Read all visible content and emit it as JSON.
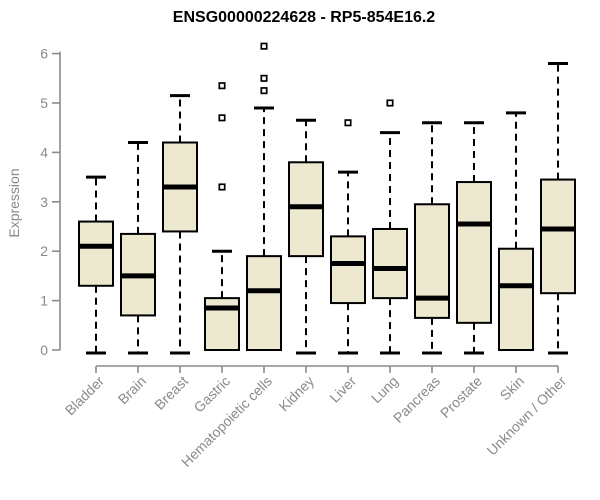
{
  "chart_data": {
    "type": "boxplot",
    "title": "ENSG00000224628 - RP5-854E16.2",
    "ylabel": "Expression",
    "xlabel": "",
    "ylim": [
      0,
      6
    ],
    "yticks": [
      0,
      1,
      2,
      3,
      4,
      5,
      6
    ],
    "grid": false,
    "legend": "none",
    "categories": [
      "Bladder",
      "Brain",
      "Breast",
      "Gastric",
      "Hematopoietic cells",
      "Kidney",
      "Liver",
      "Lung",
      "Pancreas",
      "Prostate",
      "Skin",
      "Unknown / Other"
    ],
    "series": [
      {
        "name": "Bladder",
        "min": 0,
        "q1": 1.3,
        "median": 2.1,
        "q3": 2.6,
        "max": 3.5,
        "outliers": []
      },
      {
        "name": "Brain",
        "min": 0,
        "q1": 0.7,
        "median": 1.5,
        "q3": 2.35,
        "max": 4.2,
        "outliers": []
      },
      {
        "name": "Breast",
        "min": 0,
        "q1": 2.4,
        "median": 3.3,
        "q3": 4.2,
        "max": 5.15,
        "outliers": []
      },
      {
        "name": "Gastric",
        "min": 0,
        "q1": 0,
        "median": 0.85,
        "q3": 1.05,
        "max": 2.0,
        "outliers": [
          3.3,
          4.7,
          5.35
        ]
      },
      {
        "name": "Hematopoietic cells",
        "min": 0,
        "q1": 0,
        "median": 1.2,
        "q3": 1.9,
        "max": 4.9,
        "outliers": [
          5.25,
          5.5,
          6.15
        ]
      },
      {
        "name": "Kidney",
        "min": 0,
        "q1": 1.9,
        "median": 2.9,
        "q3": 3.8,
        "max": 4.65,
        "outliers": []
      },
      {
        "name": "Liver",
        "min": 0,
        "q1": 0.95,
        "median": 1.75,
        "q3": 2.3,
        "max": 3.6,
        "outliers": [
          4.6
        ]
      },
      {
        "name": "Lung",
        "min": 0,
        "q1": 1.05,
        "median": 1.65,
        "q3": 2.45,
        "max": 4.4,
        "outliers": [
          5.0
        ]
      },
      {
        "name": "Pancreas",
        "min": 0,
        "q1": 0.65,
        "median": 1.05,
        "q3": 2.95,
        "max": 4.6,
        "outliers": []
      },
      {
        "name": "Prostate",
        "min": 0,
        "q1": 0.55,
        "median": 2.55,
        "q3": 3.4,
        "max": 4.6,
        "outliers": []
      },
      {
        "name": "Skin",
        "min": 0,
        "q1": 0,
        "median": 1.3,
        "q3": 2.05,
        "max": 4.8,
        "outliers": []
      },
      {
        "name": "Unknown / Other",
        "min": 0,
        "q1": 1.15,
        "median": 2.45,
        "q3": 3.45,
        "max": 5.8,
        "outliers": []
      }
    ],
    "colors": {
      "box_fill": "#ede8d0",
      "box_stroke": "#000000",
      "median": "#000000",
      "whisker": "#000000",
      "outlier_stroke": "#000000",
      "outlier_fill": "#ffffff",
      "axis": "#8a8a8a",
      "tick_label": "#8a8a8a",
      "title": "#000000",
      "background": "#ffffff"
    }
  }
}
